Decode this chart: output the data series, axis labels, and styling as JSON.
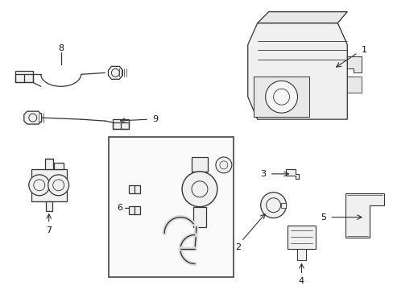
{
  "bg_color": "#ffffff",
  "line_color": "#333333",
  "text_color": "#111111",
  "figsize": [
    4.89,
    3.6
  ],
  "dpi": 100
}
